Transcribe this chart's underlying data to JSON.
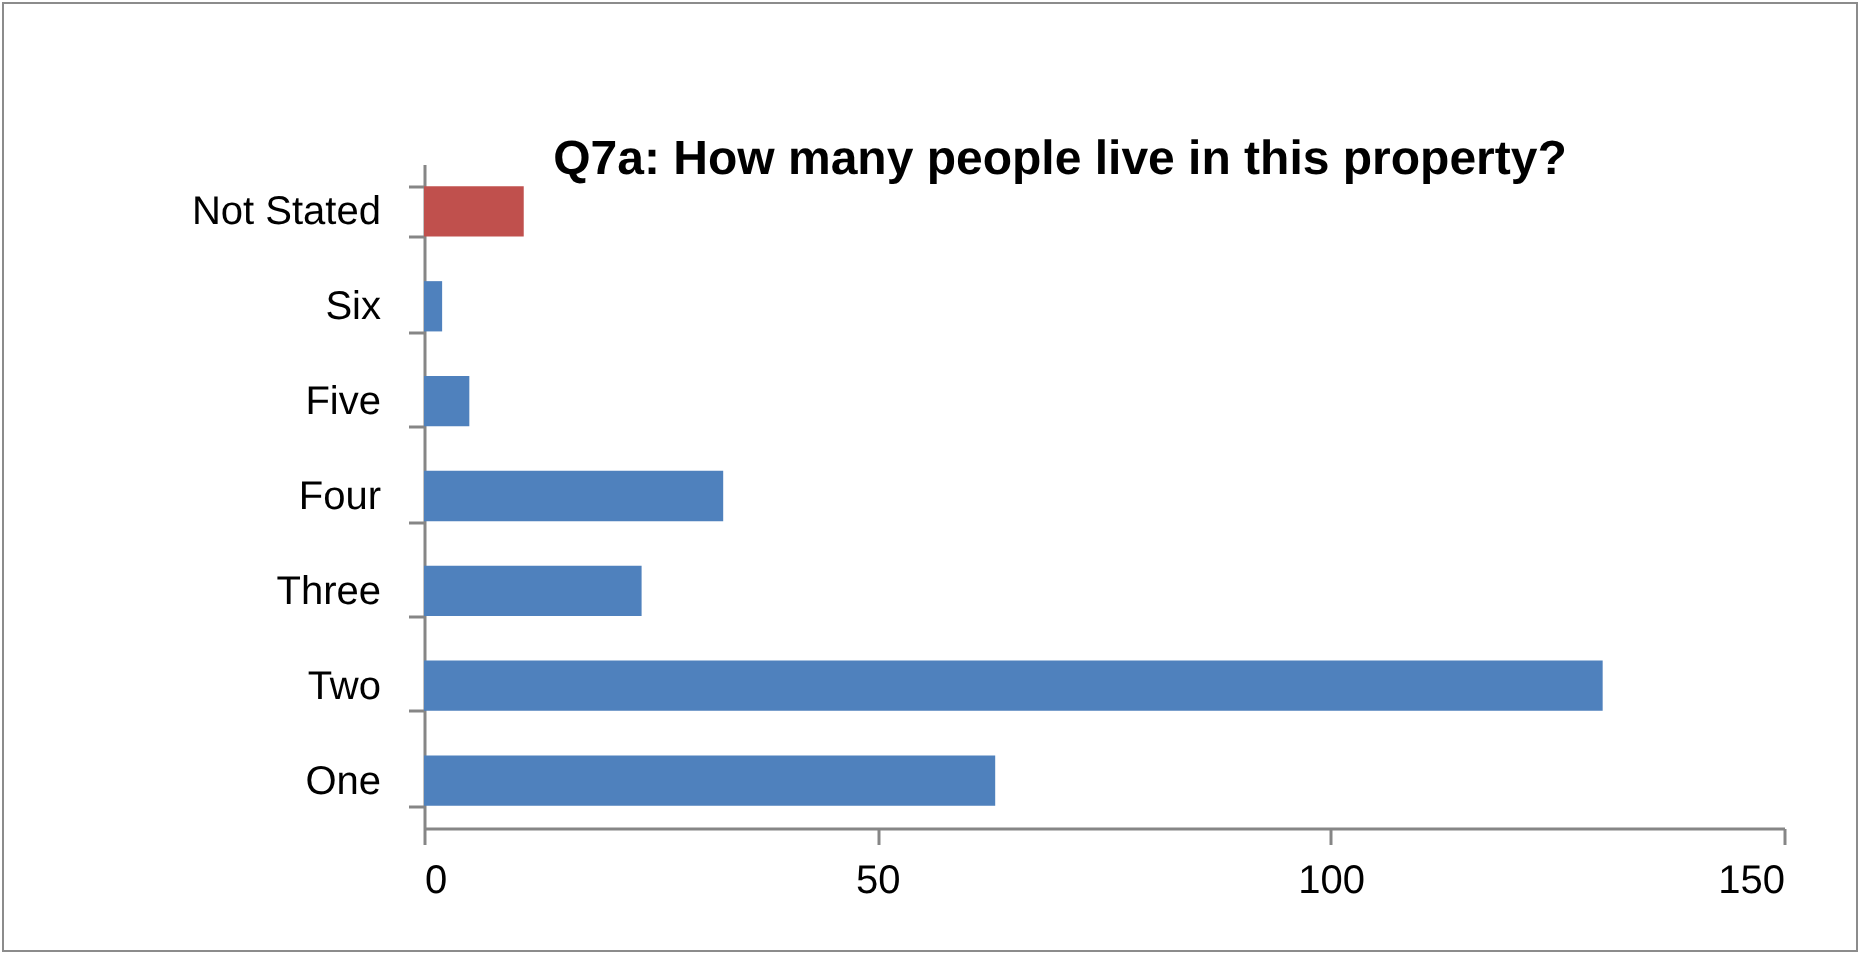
{
  "chart_data": {
    "type": "bar",
    "orientation": "horizontal",
    "title": "Q7a: How many people live in this property?",
    "categories": [
      "Not Stated",
      "Six",
      "Five",
      "Four",
      "Three",
      "Two",
      "One"
    ],
    "values": [
      11,
      2,
      5,
      33,
      24,
      130,
      63
    ],
    "colors": [
      "#c0504d",
      "#4f81bd",
      "#4f81bd",
      "#4f81bd",
      "#4f81bd",
      "#4f81bd",
      "#4f81bd"
    ],
    "xlim": [
      0,
      150
    ],
    "xticks": [
      0,
      50,
      100,
      150
    ]
  }
}
